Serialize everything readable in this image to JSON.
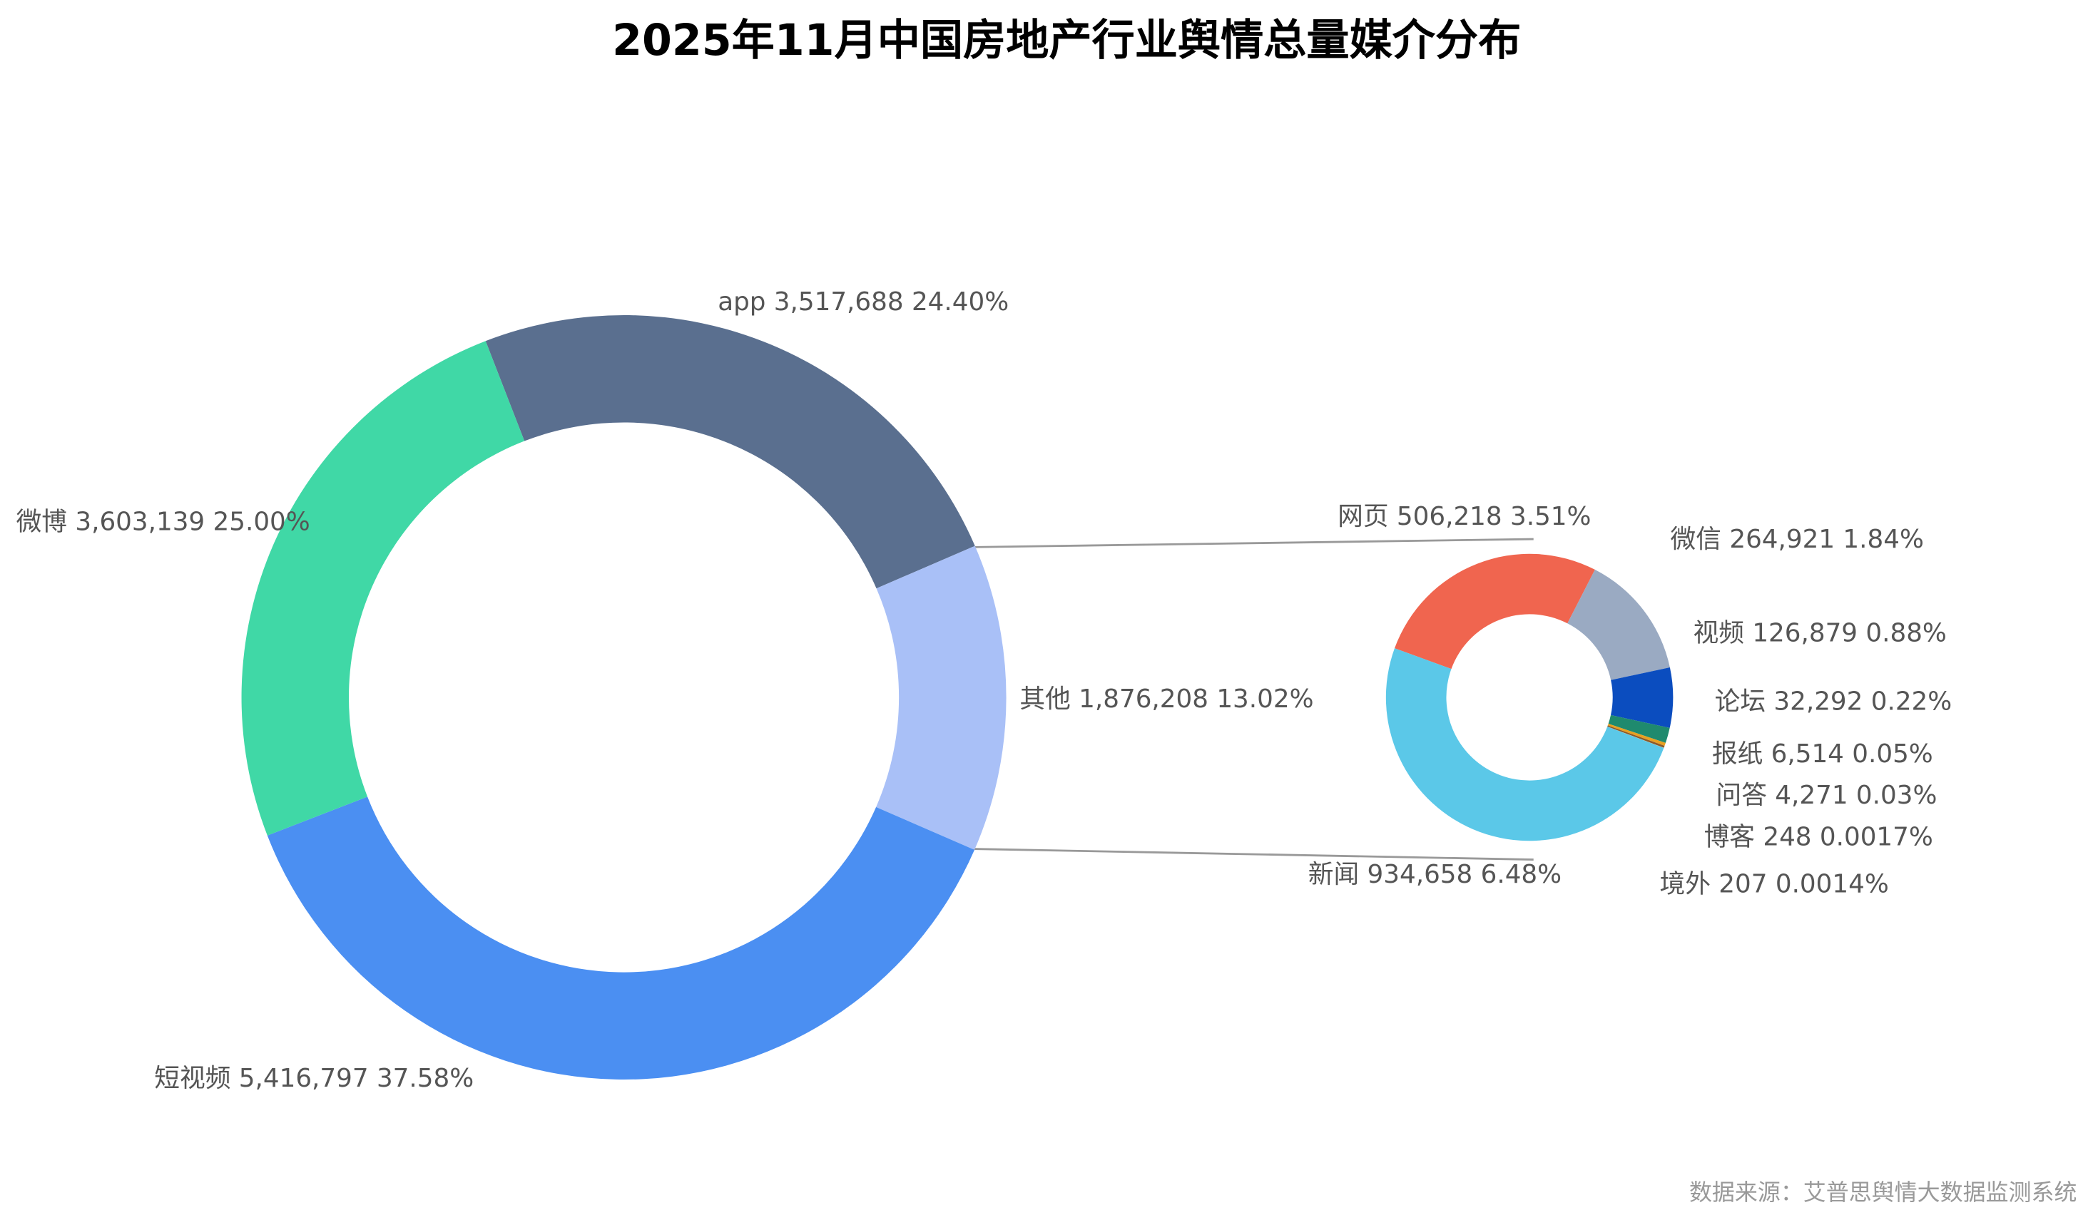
{
  "chart_data": [
    {
      "type": "pie",
      "title": "2025年11月中国房地产行业舆情总量媒介分布",
      "source": "数据来源：艾普思舆情大数据监测系统",
      "categories": [
        "app",
        "其他",
        "短视频",
        "微博"
      ],
      "values": [
        3517688,
        1876208,
        5416797,
        3603139
      ],
      "value_labels": [
        "3,517,688",
        "1,876,208",
        "5,416,797",
        "3,603,139"
      ],
      "percent_labels": [
        "24.40%",
        "13.02%",
        "37.58%",
        "25.00%"
      ],
      "colors": [
        "#5a6f8f",
        "#a9c0f7",
        "#4b8ff2",
        "#40d8a6"
      ]
    },
    {
      "type": "pie",
      "categories": [
        "网页",
        "微信",
        "视频",
        "论坛",
        "报纸",
        "问答",
        "博客",
        "境外",
        "新闻"
      ],
      "values": [
        506218,
        264921,
        126879,
        32292,
        6514,
        4271,
        248,
        207,
        934658
      ],
      "value_labels": [
        "506,218",
        "264,921",
        "126,879",
        "32,292",
        "6,514",
        "4,271",
        "248",
        "207",
        "934,658"
      ],
      "percent_labels": [
        "3.51%",
        "1.84%",
        "0.88%",
        "0.22%",
        "0.05%",
        "0.03%",
        "0.0017%",
        "0.0014%",
        "6.48%"
      ],
      "colors": [
        "#f0654f",
        "#9aaac2",
        "#0b4dbf",
        "#1f8a6e",
        "#e8a020",
        "#8a5a2a",
        "#c0c0c0",
        "#f0c040",
        "#5bc8e8"
      ]
    }
  ]
}
